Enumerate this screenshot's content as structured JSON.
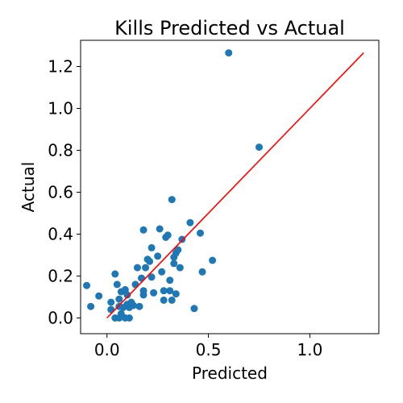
{
  "chart_data": {
    "type": "scatter",
    "title": "Kills Predicted vs Actual",
    "xlabel": "Predicted",
    "ylabel": "Actual",
    "xlim": [
      -0.13,
      1.34
    ],
    "ylim": [
      -0.075,
      1.325
    ],
    "xticks": [
      0.0,
      0.5,
      1.0
    ],
    "xtick_labels": [
      "0.0",
      "0.5",
      "1.0"
    ],
    "yticks": [
      0.0,
      0.2,
      0.4,
      0.6,
      0.8,
      1.0,
      1.2
    ],
    "ytick_labels": [
      "0.0",
      "0.2",
      "0.4",
      "0.6",
      "0.8",
      "1.0",
      "1.2"
    ],
    "grid": false,
    "series": [
      {
        "kind": "scatter",
        "color": "#1f77b4",
        "points": [
          [
            -0.1,
            0.155
          ],
          [
            -0.08,
            0.055
          ],
          [
            -0.04,
            0.105
          ],
          [
            0.02,
            0.075
          ],
          [
            0.02,
            0.04
          ],
          [
            0.04,
            0.21
          ],
          [
            0.05,
            0.16
          ],
          [
            0.06,
            0.09
          ],
          [
            0.06,
            0.055
          ],
          [
            0.07,
            0.125
          ],
          [
            0.08,
            0.05
          ],
          [
            0.09,
            0.135
          ],
          [
            0.1,
            0.11
          ],
          [
            0.1,
            0.065
          ],
          [
            0.11,
            0.05
          ],
          [
            0.12,
            0.075
          ],
          [
            0.13,
            0.06
          ],
          [
            0.14,
            0.16
          ],
          [
            0.15,
            0.24
          ],
          [
            0.16,
            0.055
          ],
          [
            0.17,
            0.19
          ],
          [
            0.18,
            0.42
          ],
          [
            0.18,
            0.13
          ],
          [
            0.18,
            0.11
          ],
          [
            0.19,
            0.24
          ],
          [
            0.2,
            0.28
          ],
          [
            0.21,
            0.27
          ],
          [
            0.22,
            0.335
          ],
          [
            0.22,
            0.195
          ],
          [
            0.23,
            0.12
          ],
          [
            0.25,
            0.295
          ],
          [
            0.26,
            0.425
          ],
          [
            0.27,
            0.22
          ],
          [
            0.28,
            0.13
          ],
          [
            0.28,
            0.085
          ],
          [
            0.29,
            0.385
          ],
          [
            0.3,
            0.395
          ],
          [
            0.31,
            0.18
          ],
          [
            0.31,
            0.13
          ],
          [
            0.32,
            0.565
          ],
          [
            0.32,
            0.085
          ],
          [
            0.33,
            0.29
          ],
          [
            0.33,
            0.26
          ],
          [
            0.34,
            0.31
          ],
          [
            0.34,
            0.115
          ],
          [
            0.35,
            0.325
          ],
          [
            0.36,
            0.24
          ],
          [
            0.37,
            0.375
          ],
          [
            0.41,
            0.455
          ],
          [
            0.43,
            0.045
          ],
          [
            0.46,
            0.405
          ],
          [
            0.47,
            0.22
          ],
          [
            0.52,
            0.275
          ],
          [
            0.6,
            1.265
          ],
          [
            0.75,
            0.815
          ],
          [
            0.04,
            0.0
          ],
          [
            0.06,
            0.0
          ],
          [
            0.09,
            0.0
          ],
          [
            0.11,
            0.0
          ],
          [
            0.07,
            0.02
          ]
        ]
      }
    ],
    "reference_line": {
      "color": "#ff0000",
      "from": [
        0.0,
        0.0
      ],
      "to": [
        1.265,
        1.265
      ]
    }
  }
}
